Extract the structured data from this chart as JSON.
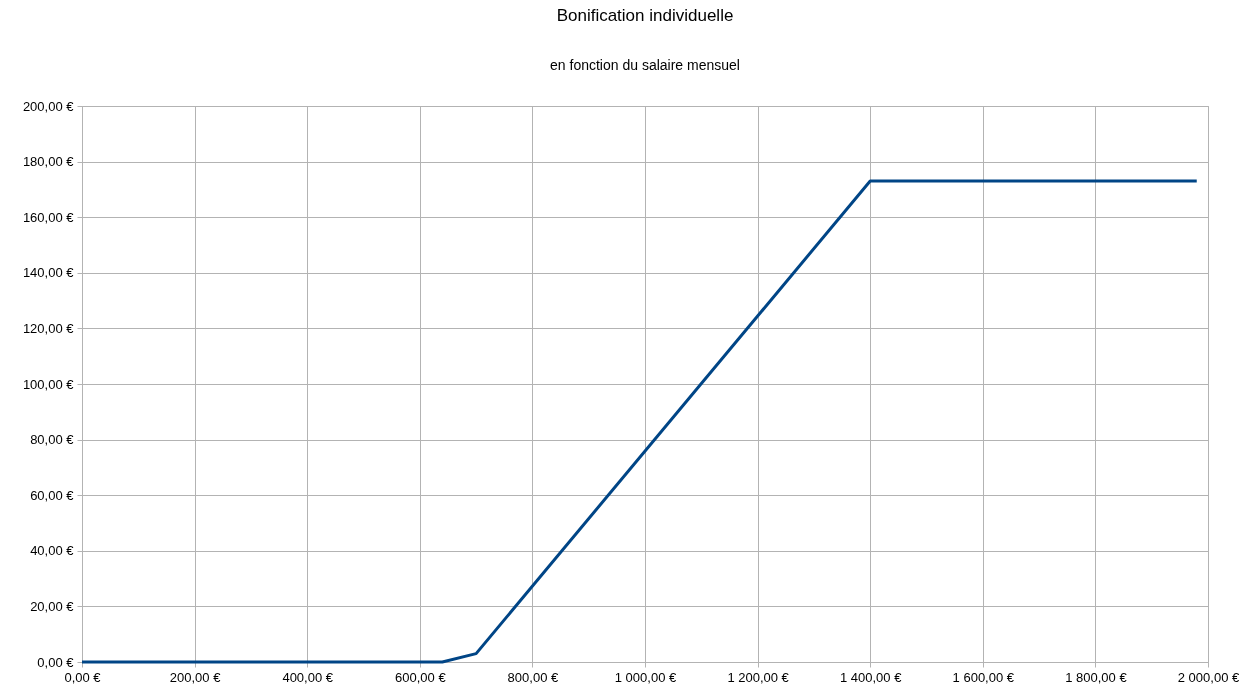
{
  "chart_data": {
    "type": "line",
    "title": "Bonification individuelle",
    "subtitle": "en fonction du salaire mensuel",
    "x": [
      0,
      640,
      700,
      1400,
      1980
    ],
    "series": [
      {
        "color": "#004586",
        "values": [
          0,
          0,
          3,
          173,
          173
        ]
      }
    ],
    "xlim": [
      0,
      2000
    ],
    "xticks": [
      {
        "value": 0,
        "label": "0,00 €"
      },
      {
        "value": 200,
        "label": "200,00 €"
      },
      {
        "value": 400,
        "label": "400,00 €"
      },
      {
        "value": 600,
        "label": "600,00 €"
      },
      {
        "value": 800,
        "label": "800,00 €"
      },
      {
        "value": 1000,
        "label": "1 000,00 €"
      },
      {
        "value": 1200,
        "label": "1 200,00 €"
      },
      {
        "value": 1400,
        "label": "1 400,00 €"
      },
      {
        "value": 1600,
        "label": "1 600,00 €"
      },
      {
        "value": 1800,
        "label": "1 800,00 €"
      },
      {
        "value": 2000,
        "label": "2 000,00 €"
      }
    ],
    "ylim": [
      0,
      200
    ],
    "yticks": [
      {
        "value": 0,
        "label": "0,00 €"
      },
      {
        "value": 20,
        "label": "20,00 €"
      },
      {
        "value": 40,
        "label": "40,00 €"
      },
      {
        "value": 60,
        "label": "60,00 €"
      },
      {
        "value": 80,
        "label": "80,00 €"
      },
      {
        "value": 100,
        "label": "100,00 €"
      },
      {
        "value": 120,
        "label": "120,00 €"
      },
      {
        "value": 140,
        "label": "140,00 €"
      },
      {
        "value": 160,
        "label": "160,00 €"
      },
      {
        "value": 180,
        "label": "180,00 €"
      },
      {
        "value": 200,
        "label": "200,00 €"
      }
    ],
    "grid": true,
    "marker": "none",
    "line_style": "solid"
  }
}
